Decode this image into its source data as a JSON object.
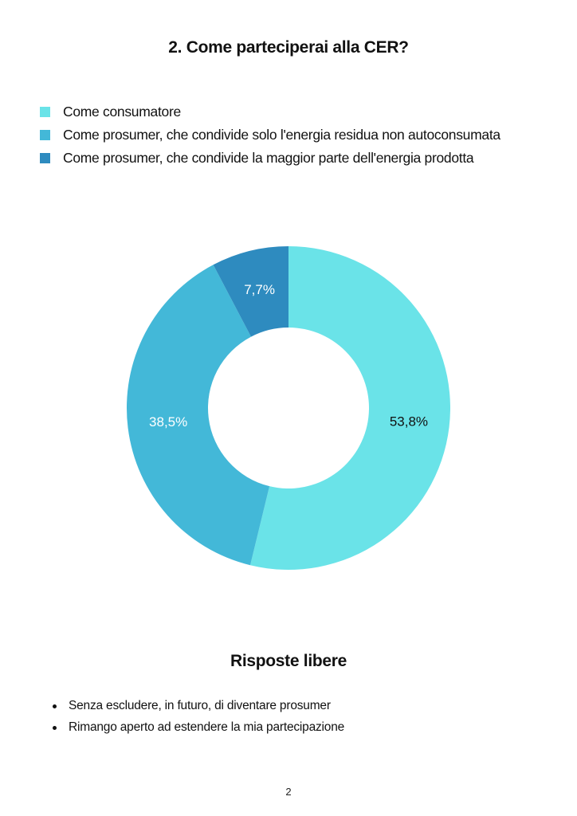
{
  "page": {
    "title": "2. Come parteciperai alla CER?",
    "section_title": "Risposte libere",
    "answers": [
      "Senza escludere, in futuro, di diventare prosumer",
      "Rimango aperto ad estendere la mia partecipazione"
    ],
    "page_number": "2"
  },
  "chart_data": {
    "type": "pie",
    "title": "2. Come parteciperai alla CER?",
    "donut": true,
    "legend_position": "top-left",
    "categories": [
      "Come consumatore",
      "Come prosumer, che condivide solo l'energia residua non autoconsumata",
      "Come prosumer, che condivide la maggior parte dell'energia prodotta"
    ],
    "values": [
      53.8,
      38.5,
      7.7
    ],
    "labels": [
      "53,8%",
      "38,5%",
      "7,7%"
    ],
    "colors": [
      "#6ae3e8",
      "#43b8d8",
      "#2e8bbf"
    ],
    "label_colors": [
      "#111111",
      "#ffffff",
      "#ffffff"
    ]
  }
}
